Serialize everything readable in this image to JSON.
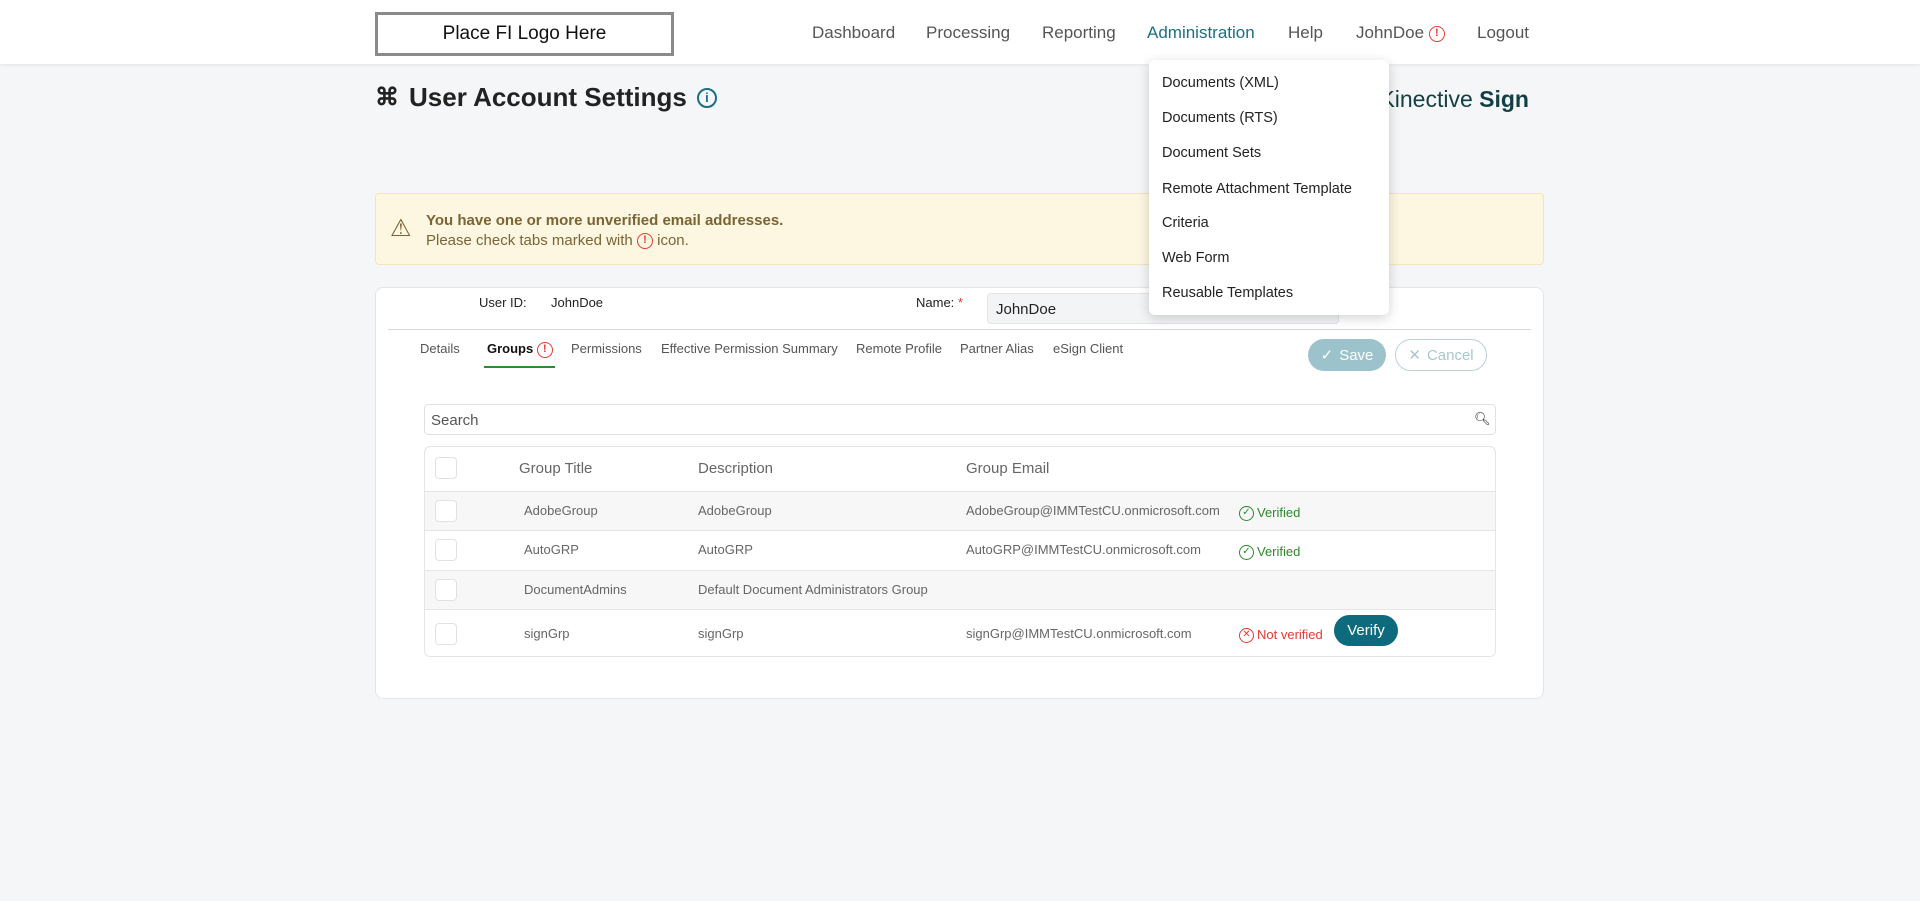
{
  "header": {
    "logo": "Place FI Logo Here",
    "nav": [
      {
        "label": "Dashboard"
      },
      {
        "label": "Processing"
      },
      {
        "label": "Reporting"
      },
      {
        "label": "Administration"
      },
      {
        "label": "Help"
      },
      {
        "label": "JohnDoe"
      },
      {
        "label": "Logout"
      }
    ],
    "active": "Administration"
  },
  "admin_menu": [
    "Documents (XML)",
    "Documents (RTS)",
    "Document Sets",
    "Remote Attachment Template",
    "Criteria",
    "Web Form",
    "Reusable Templates"
  ],
  "page": {
    "title": "User Account Settings",
    "brand_light": "Kinective",
    "brand_bold": "Sign"
  },
  "alert": {
    "line1": "You have one or more unverified email addresses.",
    "line2_pre": "Please check tabs marked with",
    "line2_post": "icon."
  },
  "form": {
    "user_id_label": "User ID:",
    "user_id": "JohnDoe",
    "name_label": "Name:",
    "required": "*",
    "name_value": "JohnDoe"
  },
  "tabs": [
    "Details",
    "Groups",
    "Permissions",
    "Effective Permission Summary",
    "Remote Profile",
    "Partner Alias",
    "eSign Client"
  ],
  "buttons": {
    "save": "Save",
    "cancel": "Cancel",
    "verify": "Verify"
  },
  "search": {
    "placeholder": "Search"
  },
  "table": {
    "headers": [
      "Group Title",
      "Description",
      "Group Email"
    ],
    "rows": [
      {
        "title": "AdobeGroup",
        "description": "AdobeGroup",
        "email": "AdobeGroup@IMMTestCU.onmicrosoft.com",
        "status": "Verified"
      },
      {
        "title": "AutoGRP",
        "description": "AutoGRP",
        "email": "AutoGRP@IMMTestCU.onmicrosoft.com",
        "status": "Verified"
      },
      {
        "title": "DocumentAdmins",
        "description": "Default Document Administrators Group",
        "email": "",
        "status": ""
      },
      {
        "title": "signGrp",
        "description": "signGrp",
        "email": "signGrp@IMMTestCU.onmicrosoft.com",
        "status": "Not verified"
      }
    ]
  },
  "colors": {
    "accent": "#1a6f82",
    "verify_button": "#0e6b7d",
    "verified": "#2a8a2a",
    "not_verified": "#e53935",
    "warning_bg": "#fdf7e1"
  }
}
